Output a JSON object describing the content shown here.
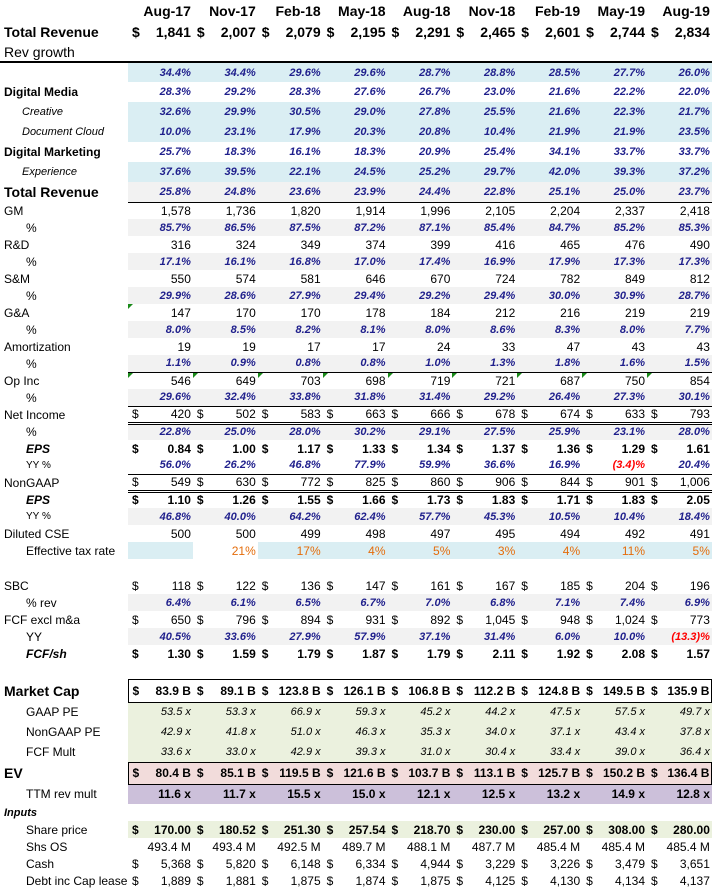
{
  "header": {
    "dates": [
      "Aug-17",
      "Nov-17",
      "Feb-18",
      "May-18",
      "Aug-18",
      "Nov-18",
      "Feb-19",
      "May-19",
      "Aug-19"
    ],
    "total_revenue_label": "Total Revenue",
    "currency": "$",
    "total_revenue_values": [
      "1,841",
      "2,007",
      "2,079",
      "2,195",
      "2,291",
      "2,465",
      "2,601",
      "2,744",
      "2,834"
    ],
    "rev_growth_label": "Rev growth"
  },
  "colors": {
    "pct_text": "#1f1f8c",
    "negative": "#ff0000",
    "tax_text": "#e46c0a",
    "blue_bg": "#daeef3",
    "gray_bg": "#f2f2f2",
    "green_bg": "#ebf1de",
    "pink_bg": "#f2dcdb",
    "purple_bg": "#ccc0da"
  },
  "rows": [
    {
      "label": "",
      "values": [
        "34.4%",
        "34.4%",
        "29.6%",
        "29.6%",
        "28.7%",
        "28.8%",
        "28.5%",
        "27.7%",
        "26.0%"
      ]
    },
    {
      "label": "Digital Media",
      "values": [
        "28.3%",
        "29.2%",
        "28.3%",
        "27.6%",
        "26.7%",
        "23.0%",
        "21.6%",
        "22.2%",
        "22.0%"
      ]
    },
    {
      "label": "Creative",
      "values": [
        "32.6%",
        "29.9%",
        "30.5%",
        "29.0%",
        "27.8%",
        "25.5%",
        "21.6%",
        "22.3%",
        "21.7%"
      ]
    },
    {
      "label": "Document Cloud",
      "values": [
        "10.0%",
        "23.1%",
        "17.9%",
        "20.3%",
        "20.8%",
        "10.4%",
        "21.9%",
        "21.9%",
        "23.5%"
      ]
    },
    {
      "label": "Digital Marketing",
      "values": [
        "25.7%",
        "18.3%",
        "16.1%",
        "18.3%",
        "20.9%",
        "25.4%",
        "34.1%",
        "33.7%",
        "33.7%"
      ]
    },
    {
      "label": "Experience",
      "values": [
        "37.6%",
        "39.5%",
        "22.1%",
        "24.5%",
        "25.2%",
        "29.7%",
        "42.0%",
        "39.3%",
        "37.2%"
      ]
    },
    {
      "label": "Total Revenue",
      "values": [
        "25.8%",
        "24.8%",
        "23.6%",
        "23.9%",
        "24.4%",
        "22.8%",
        "25.1%",
        "25.0%",
        "23.7%"
      ]
    },
    {
      "label": "GM",
      "values": [
        "1,578",
        "1,736",
        "1,820",
        "1,914",
        "1,996",
        "2,105",
        "2,204",
        "2,337",
        "2,418"
      ]
    },
    {
      "label": "%",
      "values": [
        "85.7%",
        "86.5%",
        "87.5%",
        "87.2%",
        "87.1%",
        "85.4%",
        "84.7%",
        "85.2%",
        "85.3%"
      ]
    },
    {
      "label": "R&D",
      "values": [
        "316",
        "324",
        "349",
        "374",
        "399",
        "416",
        "465",
        "476",
        "490"
      ]
    },
    {
      "label": "%",
      "values": [
        "17.1%",
        "16.1%",
        "16.8%",
        "17.0%",
        "17.4%",
        "16.9%",
        "17.9%",
        "17.3%",
        "17.3%"
      ]
    },
    {
      "label": "S&M",
      "values": [
        "550",
        "574",
        "581",
        "646",
        "670",
        "724",
        "782",
        "849",
        "812"
      ]
    },
    {
      "label": "%",
      "values": [
        "29.9%",
        "28.6%",
        "27.9%",
        "29.4%",
        "29.2%",
        "29.4%",
        "30.0%",
        "30.9%",
        "28.7%"
      ]
    },
    {
      "label": "G&A",
      "values": [
        "147",
        "170",
        "170",
        "178",
        "184",
        "212",
        "216",
        "219",
        "219"
      ]
    },
    {
      "label": "%",
      "values": [
        "8.0%",
        "8.5%",
        "8.2%",
        "8.1%",
        "8.0%",
        "8.6%",
        "8.3%",
        "8.0%",
        "7.7%"
      ]
    },
    {
      "label": "Amortization",
      "values": [
        "19",
        "19",
        "17",
        "17",
        "24",
        "33",
        "47",
        "43",
        "43"
      ]
    },
    {
      "label": "%",
      "values": [
        "1.1%",
        "0.9%",
        "0.8%",
        "0.8%",
        "1.0%",
        "1.3%",
        "1.8%",
        "1.6%",
        "1.5%"
      ]
    },
    {
      "label": "Op Inc",
      "values": [
        "546",
        "649",
        "703",
        "698",
        "719",
        "721",
        "687",
        "750",
        "854"
      ]
    },
    {
      "label": "%",
      "values": [
        "29.6%",
        "32.4%",
        "33.8%",
        "31.8%",
        "31.4%",
        "29.2%",
        "26.4%",
        "27.3%",
        "30.1%"
      ]
    },
    {
      "label": "Net Income",
      "prefix": "$",
      "values": [
        "420",
        "502",
        "583",
        "663",
        "666",
        "678",
        "674",
        "633",
        "793"
      ]
    },
    {
      "label": "%",
      "values": [
        "22.8%",
        "25.0%",
        "28.0%",
        "30.2%",
        "29.1%",
        "27.5%",
        "25.9%",
        "23.1%",
        "28.0%"
      ]
    },
    {
      "label": "EPS",
      "prefix": "$",
      "values": [
        "0.84",
        "1.00",
        "1.17",
        "1.33",
        "1.34",
        "1.37",
        "1.36",
        "1.29",
        "1.61"
      ]
    },
    {
      "label": "YY %",
      "values": [
        "56.0%",
        "26.2%",
        "46.8%",
        "77.9%",
        "59.9%",
        "36.6%",
        "16.9%",
        "(3.4)%",
        "20.4%"
      ]
    },
    {
      "label": "NonGAAP",
      "prefix": "$",
      "values": [
        "549",
        "630",
        "772",
        "825",
        "860",
        "906",
        "844",
        "901",
        "1,006"
      ]
    },
    {
      "label": "EPS",
      "prefix": "$",
      "values": [
        "1.10",
        "1.26",
        "1.55",
        "1.66",
        "1.73",
        "1.83",
        "1.71",
        "1.83",
        "2.05"
      ]
    },
    {
      "label": "YY %",
      "values": [
        "46.8%",
        "40.0%",
        "64.2%",
        "62.4%",
        "57.7%",
        "45.3%",
        "10.5%",
        "10.4%",
        "18.4%"
      ]
    },
    {
      "label": "Diluted CSE",
      "values": [
        "500",
        "500",
        "499",
        "498",
        "497",
        "495",
        "494",
        "492",
        "491"
      ]
    },
    {
      "label": "Effective tax rate",
      "values": [
        "",
        "21%",
        "17%",
        "4%",
        "5%",
        "3%",
        "4%",
        "11%",
        "5%"
      ]
    },
    {
      "label": "",
      "values": [
        "",
        "",
        "",
        "",
        "",
        "",
        "",
        "",
        ""
      ]
    },
    {
      "label": "SBC",
      "prefix": "$",
      "values": [
        "118",
        "122",
        "136",
        "147",
        "161",
        "167",
        "185",
        "204",
        "196"
      ]
    },
    {
      "label": "% rev",
      "values": [
        "6.4%",
        "6.1%",
        "6.5%",
        "6.7%",
        "7.0%",
        "6.8%",
        "7.1%",
        "7.4%",
        "6.9%"
      ]
    },
    {
      "label": "FCF excl m&a",
      "prefix": "$",
      "values": [
        "650",
        "796",
        "894",
        "931",
        "892",
        "1,045",
        "948",
        "1,024",
        "773"
      ]
    },
    {
      "label": "YY",
      "values": [
        "40.5%",
        "33.6%",
        "27.9%",
        "57.9%",
        "37.1%",
        "31.4%",
        "6.0%",
        "10.0%",
        "(13.3)%"
      ]
    },
    {
      "label": "FCF/sh",
      "prefix": "$",
      "values": [
        "1.30",
        "1.59",
        "1.79",
        "1.87",
        "1.79",
        "2.11",
        "1.92",
        "2.08",
        "1.57"
      ]
    },
    {
      "label": "",
      "values": [
        "",
        "",
        "",
        "",
        "",
        "",
        "",
        "",
        ""
      ]
    },
    {
      "label": "Market Cap",
      "prefix": "$",
      "values": [
        "83.9 B",
        "89.1 B",
        "123.8 B",
        "126.1 B",
        "106.8 B",
        "112.2 B",
        "124.8 B",
        "149.5 B",
        "135.9 B"
      ]
    },
    {
      "label": "GAAP PE",
      "values": [
        "53.5 x",
        "53.3 x",
        "66.9 x",
        "59.3 x",
        "45.2 x",
        "44.2 x",
        "47.5 x",
        "57.5 x",
        "49.7 x"
      ]
    },
    {
      "label": "NonGAAP PE",
      "values": [
        "42.9 x",
        "41.8 x",
        "51.0 x",
        "46.3 x",
        "35.3 x",
        "34.0 x",
        "37.1 x",
        "43.4 x",
        "37.8 x"
      ]
    },
    {
      "label": "FCF Mult",
      "values": [
        "33.6 x",
        "33.0 x",
        "42.9 x",
        "39.3 x",
        "31.0 x",
        "30.4 x",
        "33.4 x",
        "39.0 x",
        "36.4 x"
      ]
    },
    {
      "label": "EV",
      "prefix": "$",
      "values": [
        "80.4 B",
        "85.1 B",
        "119.5 B",
        "121.6 B",
        "103.7 B",
        "113.1 B",
        "125.7 B",
        "150.2 B",
        "136.4 B"
      ]
    },
    {
      "label": "TTM rev mult",
      "values": [
        "11.6 x",
        "11.7 x",
        "15.5 x",
        "15.0 x",
        "12.1 x",
        "12.5 x",
        "13.2 x",
        "14.9 x",
        "12.8 x"
      ]
    },
    {
      "label": "Inputs",
      "values": [
        "",
        "",
        "",
        "",
        "",
        "",
        "",
        "",
        ""
      ]
    },
    {
      "label": "Share price",
      "prefix": "$",
      "values": [
        "170.00",
        "180.52",
        "251.30",
        "257.54",
        "218.70",
        "230.00",
        "257.00",
        "308.00",
        "280.00"
      ]
    },
    {
      "label": "Shs OS",
      "values": [
        "493.4 M",
        "493.4 M",
        "492.5 M",
        "489.7 M",
        "488.1 M",
        "487.7 M",
        "485.4 M",
        "485.4 M",
        "485.4 M"
      ]
    },
    {
      "label": "Cash",
      "prefix": "$",
      "values": [
        "5,368",
        "5,820",
        "6,148",
        "6,334",
        "4,944",
        "3,229",
        "3,226",
        "3,479",
        "3,651"
      ]
    },
    {
      "label": "Debt inc Cap lease",
      "prefix": "$",
      "values": [
        "1,889",
        "1,881",
        "1,875",
        "1,874",
        "1,875",
        "4,125",
        "4,130",
        "4,134",
        "4,137"
      ]
    }
  ]
}
